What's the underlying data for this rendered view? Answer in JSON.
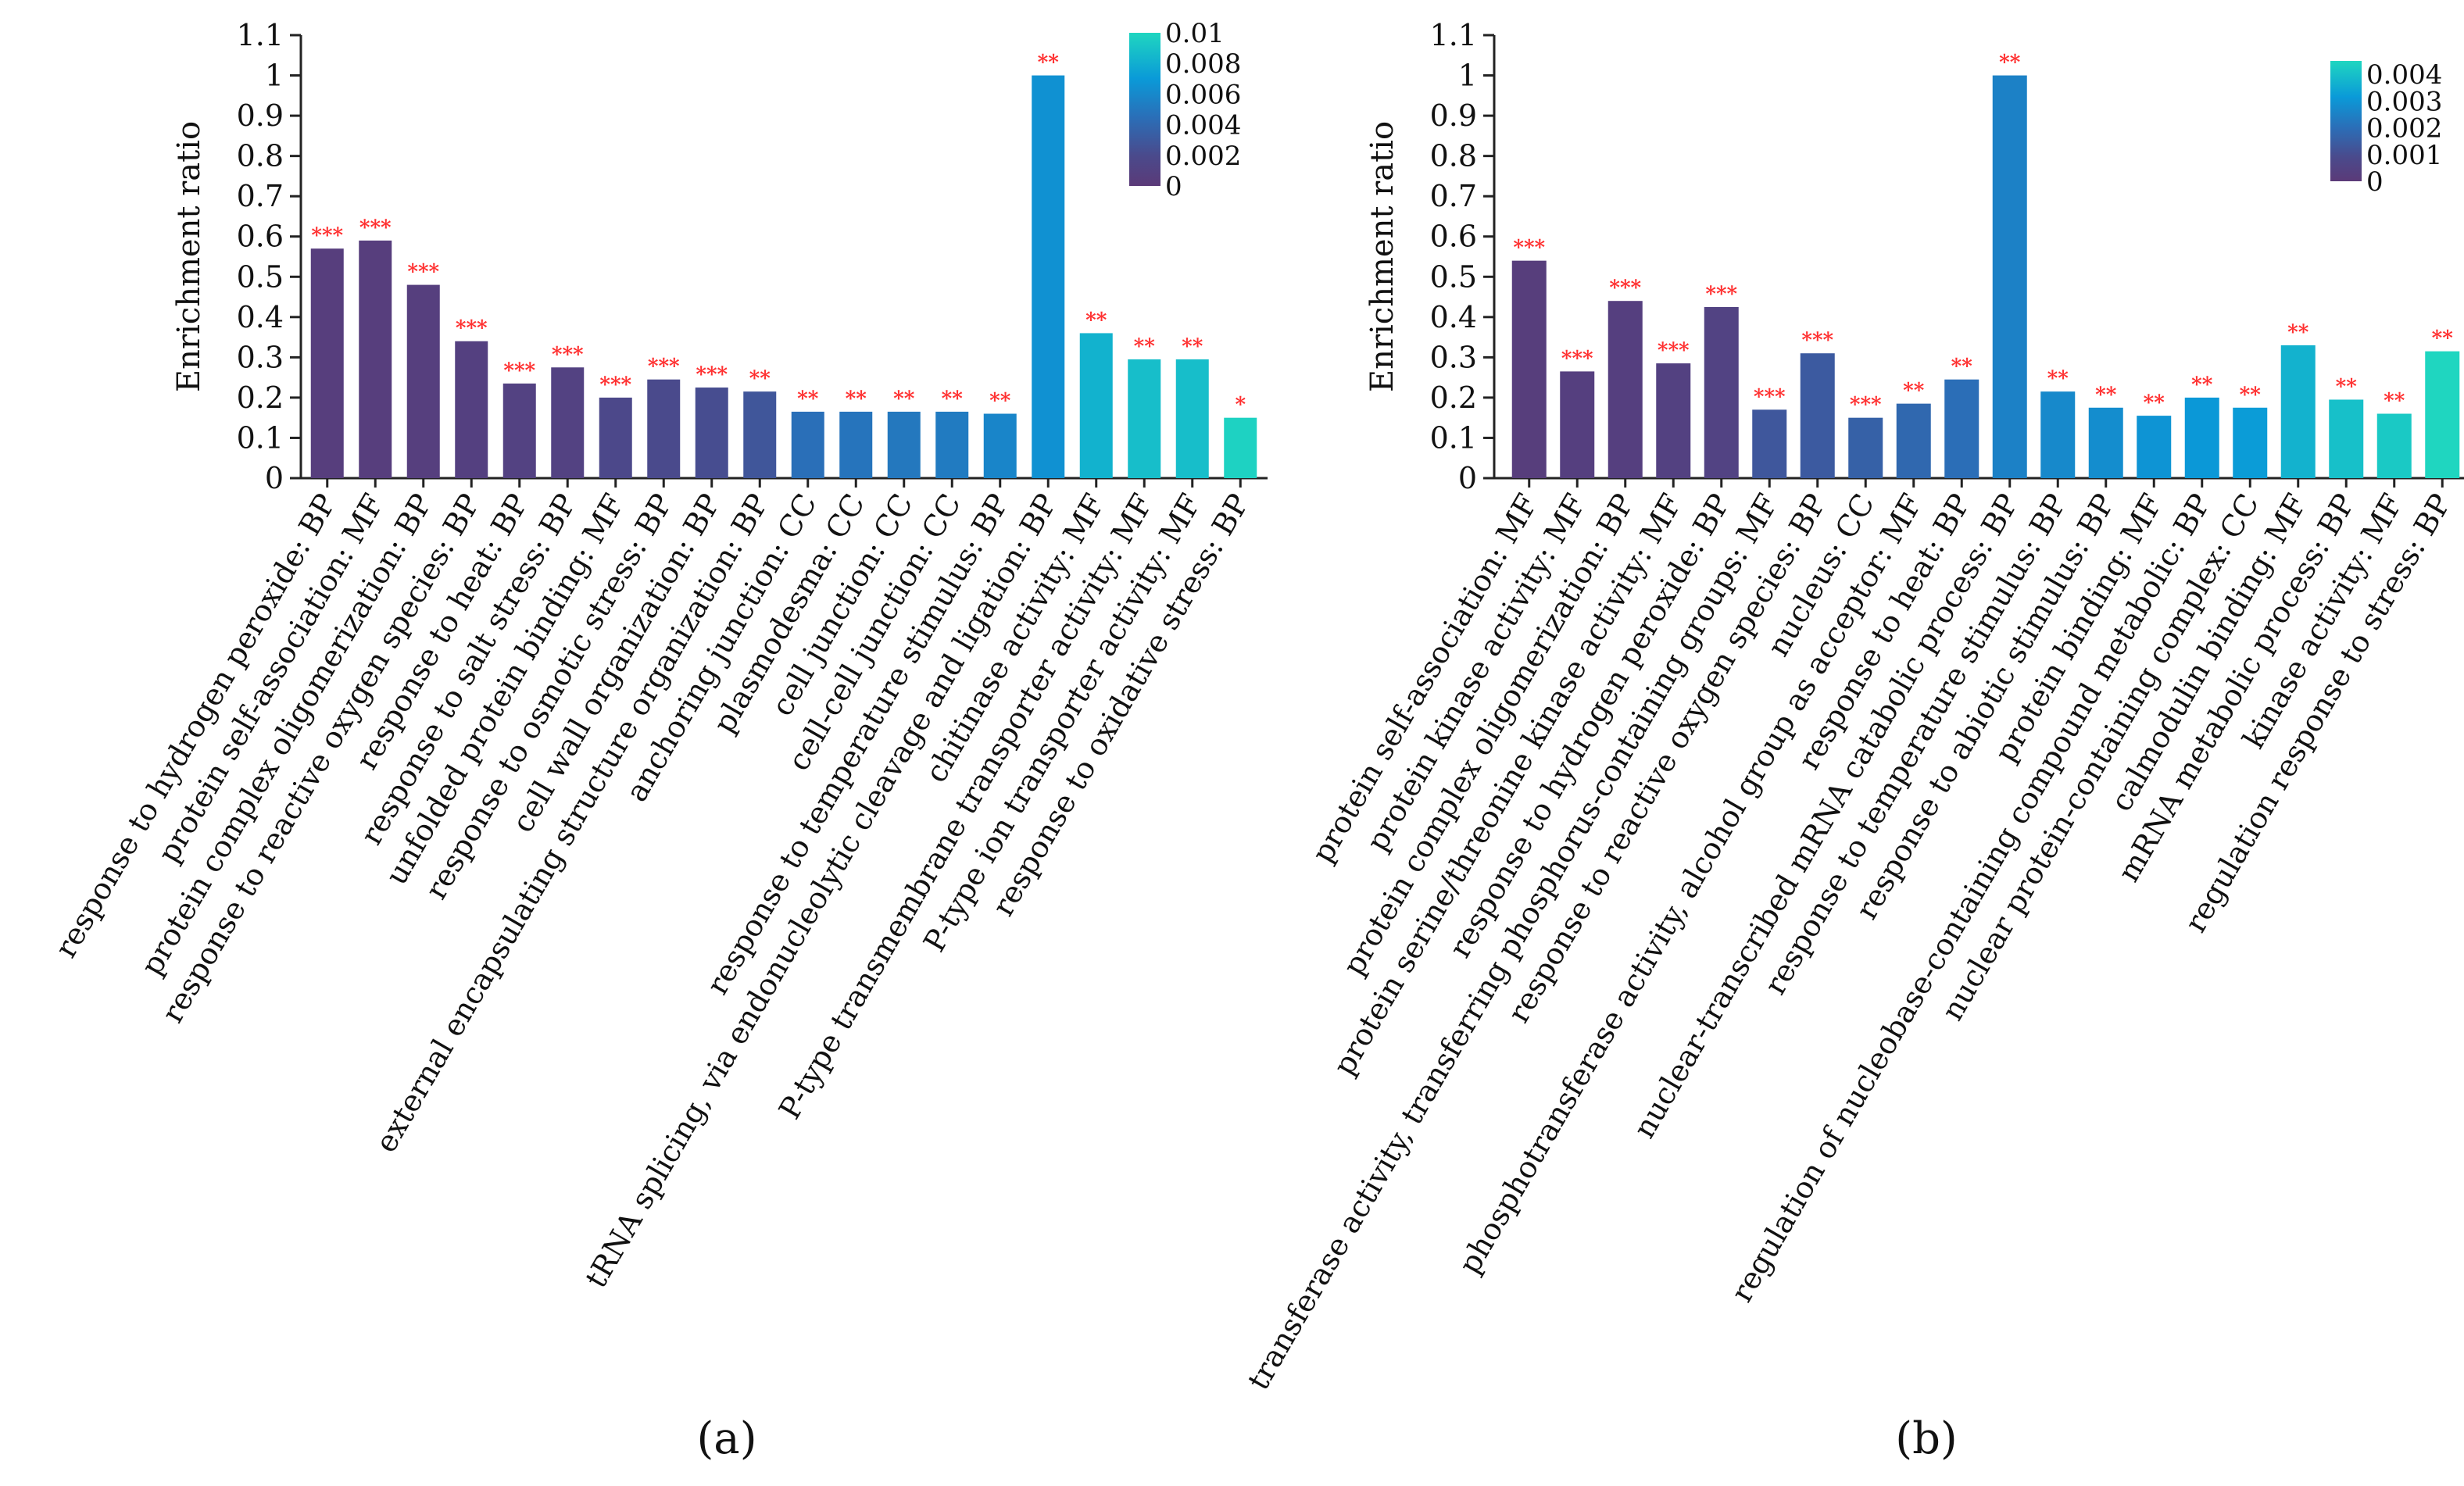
{
  "chart_data": [
    {
      "type": "bar",
      "panel_label": "(a)",
      "ylabel": "Enrichment ratio",
      "ylim": [
        0,
        1.1
      ],
      "yticks": [
        "0",
        "0.1",
        "0.2",
        "0.3",
        "0.4",
        "0.5",
        "0.6",
        "0.7",
        "0.8",
        "0.9",
        "1",
        "1.1"
      ],
      "color_legend": {
        "min": 0,
        "max": 0.01,
        "labels": [
          "0.01",
          "0.008",
          "0.006",
          "0.004",
          "0.002",
          "0"
        ]
      },
      "categories": [
        "response to hydrogen peroxide: BP",
        "protein self-association: MF",
        "protein complex oligomerization: BP",
        "response to reactive oxygen species: BP",
        "response to heat: BP",
        "response to salt stress: BP",
        "unfolded protein binding: MF",
        "response to osmotic stress: BP",
        "cell wall organization: BP",
        "external encapsulating structure organization: BP",
        "anchoring junction: CC",
        "plasmodesma: CC",
        "cell junction: CC",
        "cell-cell junction: CC",
        "response to temperature stimulus: BP",
        "tRNA splicing, via endonucleolytic cleavage and ligation: BP",
        "chitinase activity: MF",
        "P-type transmembrane transporter activity: MF",
        "P-type ion transporter activity: MF",
        "response to oxidative stress: BP"
      ],
      "values": [
        0.57,
        0.59,
        0.48,
        0.34,
        0.235,
        0.275,
        0.2,
        0.245,
        0.225,
        0.215,
        0.165,
        0.165,
        0.165,
        0.165,
        0.16,
        1.0,
        0.36,
        0.295,
        0.295,
        0.15
      ],
      "pvalues": [
        0.0005,
        0.0005,
        0.0006,
        0.0008,
        0.001,
        0.001,
        0.0018,
        0.002,
        0.0022,
        0.0028,
        0.0045,
        0.0048,
        0.005,
        0.0052,
        0.0058,
        0.0065,
        0.0082,
        0.0088,
        0.0088,
        0.0098
      ],
      "significance": [
        "***",
        "***",
        "***",
        "***",
        "***",
        "***",
        "***",
        "***",
        "***",
        "**",
        "**",
        "**",
        "**",
        "**",
        "**",
        "**",
        "**",
        "**",
        "**",
        "*"
      ]
    },
    {
      "type": "bar",
      "panel_label": "(b)",
      "ylabel": "Enrichment ratio",
      "ylim": [
        0,
        1.1
      ],
      "yticks": [
        "0",
        "0.1",
        "0.2",
        "0.3",
        "0.4",
        "0.5",
        "0.6",
        "0.7",
        "0.8",
        "0.9",
        "1",
        "1.1"
      ],
      "color_legend": {
        "min": 0,
        "max": 0.0045,
        "labels": [
          "0.004",
          "0.003",
          "0.002",
          "0.001",
          "0"
        ]
      },
      "categories": [
        "protein self-association: MF",
        "protein kinase activity: MF",
        "protein complex oligomerization: BP",
        "protein serine/threonine kinase activity: MF",
        "response to hydrogen peroxide: BP",
        "transferase activity, transferring phosphorus-containing groups: MF",
        "response to reactive oxygen species: BP",
        "nucleus: CC",
        "phosphotransferase activity, alcohol group as acceptor: MF",
        "response to heat: BP",
        "nuclear-transcribed mRNA catabolic process: BP",
        "response to temperature stimulus: BP",
        "response to abiotic stimulus: BP",
        "protein binding: MF",
        "regulation of nucleobase-containing compound metabolic: BP",
        "nuclear protein-containing complex: CC",
        "calmodulin binding: MF",
        "mRNA metabolic process: BP",
        "kinase activity: MF",
        "regulation response to stress: BP"
      ],
      "values": [
        0.54,
        0.265,
        0.44,
        0.285,
        0.425,
        0.17,
        0.31,
        0.15,
        0.185,
        0.245,
        1.0,
        0.215,
        0.175,
        0.155,
        0.2,
        0.175,
        0.33,
        0.195,
        0.16,
        0.315
      ],
      "pvalues": [
        0.0002,
        0.0003,
        0.0003,
        0.0004,
        0.0005,
        0.0013,
        0.0014,
        0.0016,
        0.0018,
        0.002,
        0.0025,
        0.0027,
        0.0028,
        0.003,
        0.0031,
        0.0032,
        0.0037,
        0.004,
        0.0042,
        0.0046
      ],
      "significance": [
        "***",
        "***",
        "***",
        "***",
        "***",
        "***",
        "***",
        "***",
        "**",
        "**",
        "**",
        "**",
        "**",
        "**",
        "**",
        "**",
        "**",
        "**",
        "**",
        "**"
      ]
    }
  ]
}
